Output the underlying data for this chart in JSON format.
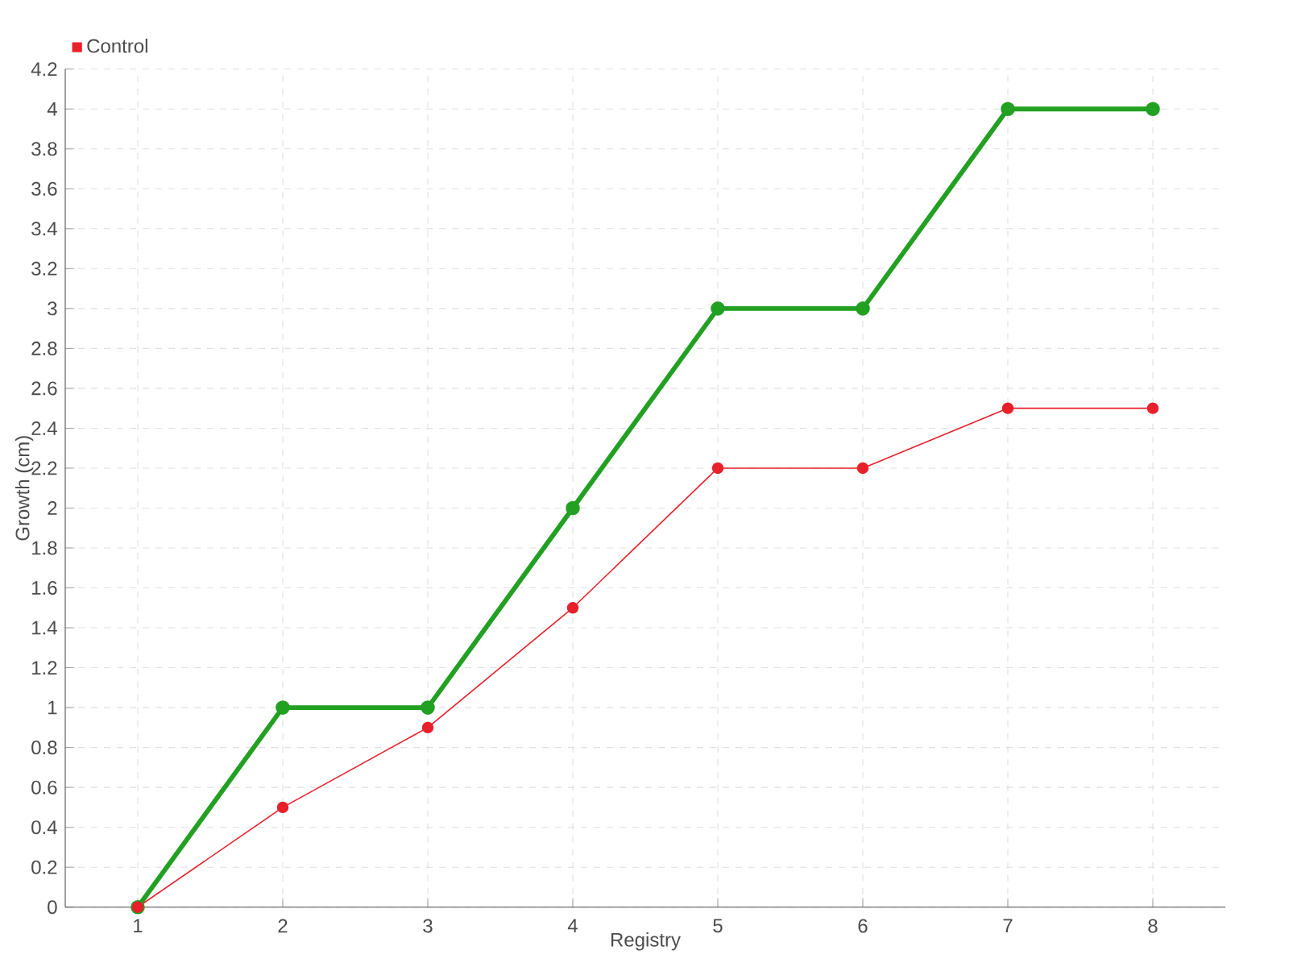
{
  "chart_data": {
    "type": "line",
    "xlabel": "Registry",
    "ylabel": "Growth (cm)",
    "categories": [
      "1",
      "2",
      "3",
      "4",
      "5",
      "6",
      "7",
      "8"
    ],
    "series": [
      {
        "color": "#22a022",
        "values": [
          0,
          1,
          1,
          2,
          3,
          3,
          4,
          4
        ]
      },
      {
        "name": "Control",
        "color": "#e8202a",
        "values": [
          0,
          0.5,
          0.9,
          1.5,
          2.2,
          2.2,
          2.5,
          2.5
        ]
      }
    ],
    "ylim": [
      0,
      4.2
    ],
    "yticks": [
      0,
      0.2,
      0.4,
      0.6,
      0.8,
      1,
      1.2,
      1.4,
      1.6,
      1.8,
      2,
      2.2,
      2.4,
      2.6,
      2.8,
      3,
      3.2,
      3.4,
      3.6,
      3.8,
      4,
      4.2
    ],
    "grid": true,
    "legend": "top left",
    "marker": "circle",
    "line_style": "solid"
  }
}
